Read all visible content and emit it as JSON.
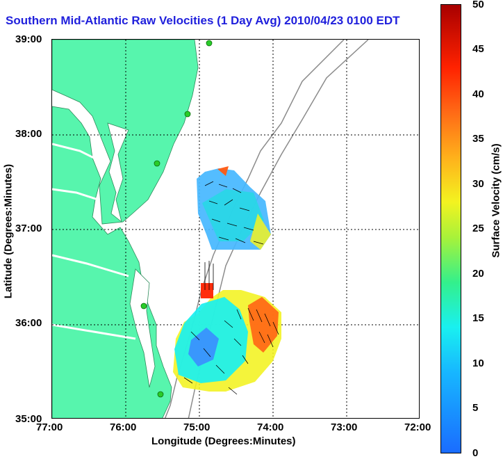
{
  "title": "Southern Mid-Atlantic Raw Velocities (1 Day Avg) 2010/04/23 0100 EDT",
  "axes": {
    "x_label": "Longitude (Degrees:Minutes)",
    "y_label": "Latitude (Degrees:Minutes)",
    "x_ticks": [
      "77:00",
      "76:00",
      "75:00",
      "74:00",
      "73:00",
      "72:00"
    ],
    "y_ticks": [
      "39:00",
      "38:00",
      "37:00",
      "36:00",
      "35:00"
    ]
  },
  "colorbar": {
    "label": "Surface Velocity (cm/s)",
    "ticks": [
      "50",
      "45",
      "40",
      "35",
      "30",
      "25",
      "20",
      "15",
      "10",
      "5",
      "0"
    ]
  },
  "colors": {
    "land": "#57f5ad",
    "title": "#1f1fdc"
  }
}
